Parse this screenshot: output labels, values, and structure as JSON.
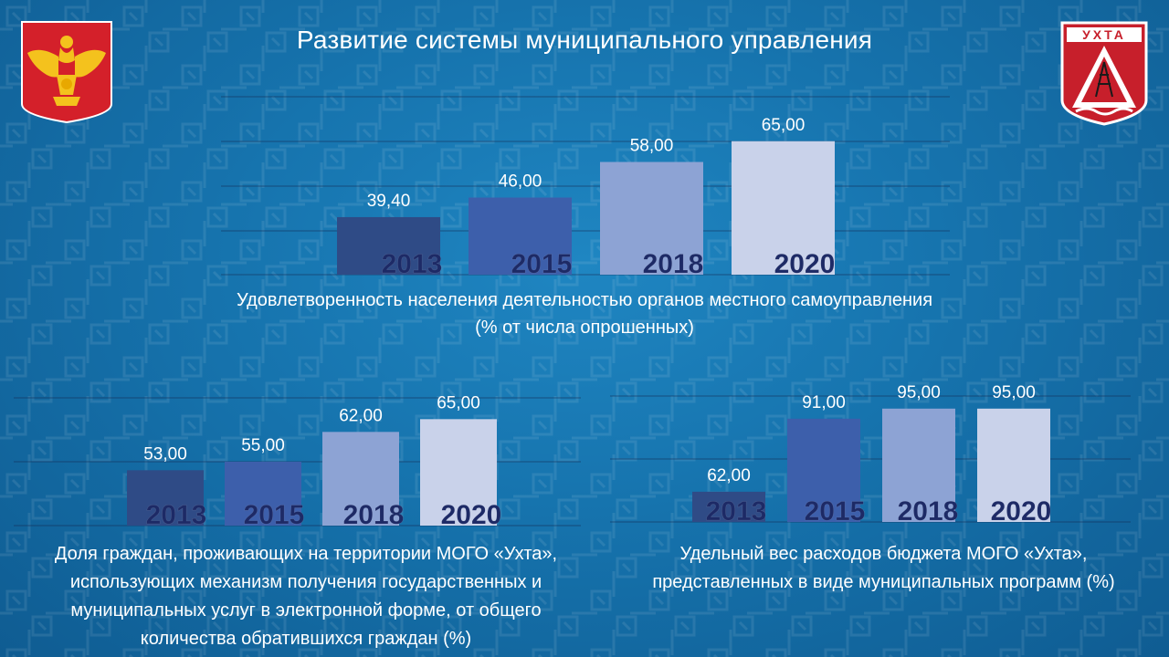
{
  "slide": {
    "title": "Развитие системы муниципального управления"
  },
  "emblems": {
    "right_text": "УХТА"
  },
  "colors": {
    "bar_2013": "#2f4b86",
    "bar_2015": "#3d5fab",
    "bar_2018": "#8da3d4",
    "bar_2020": "#c9d2ea",
    "year_text": "#1d2a66",
    "value_text": "#ffffff"
  },
  "captions": {
    "top": [
      "Удовлетворенность населения деятельностью органов местного самоуправления",
      "(% от числа опрошенных)"
    ],
    "left": [
      "Доля граждан, проживающих на территории МОГО «Ухта»,",
      "использующих механизм получения государственных и",
      "муниципальных услуг в электронной форме, от общего",
      "количества обратившихся граждан (%)"
    ],
    "right": [
      "Удельный вес расходов бюджета МОГО «Ухта»,",
      "представленных в виде муниципальных программ (%)"
    ]
  },
  "chart_data": [
    {
      "type": "bar",
      "categories": [
        "2013",
        "2015",
        "2018",
        "2020"
      ],
      "values": [
        39.4,
        46.0,
        58.0,
        65.0
      ],
      "value_labels": [
        "39,40",
        "46,00",
        "58,00",
        "65,00"
      ],
      "ylim": [
        20,
        80
      ],
      "grid": true
    },
    {
      "type": "bar",
      "categories": [
        "2013",
        "2015",
        "2018",
        "2020"
      ],
      "values": [
        53.0,
        55.0,
        62.0,
        65.0
      ],
      "value_labels": [
        "53,00",
        "55,00",
        "62,00",
        "65,00"
      ],
      "ylim": [
        40,
        70
      ],
      "grid": true
    },
    {
      "type": "bar",
      "categories": [
        "2013",
        "2015",
        "2018",
        "2020"
      ],
      "values": [
        62.0,
        91.0,
        95.0,
        95.0
      ],
      "value_labels": [
        "62,00",
        "91,00",
        "95,00",
        "95,00"
      ],
      "ylim": [
        50,
        100
      ],
      "grid": true
    }
  ]
}
